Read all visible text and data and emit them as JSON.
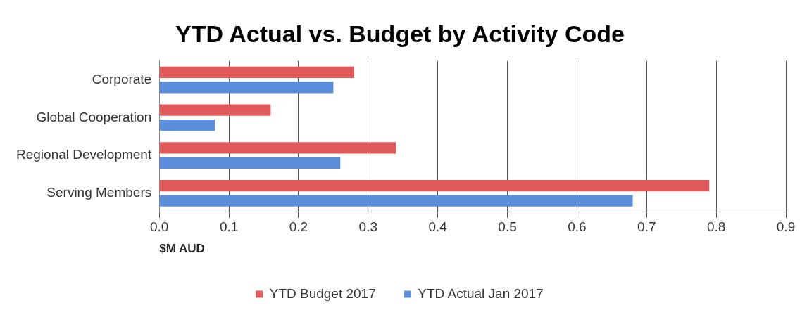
{
  "chart_data": {
    "type": "bar",
    "orientation": "horizontal",
    "title": "YTD Actual vs. Budget by Activity Code",
    "xlabel": "$M AUD",
    "categories": [
      "Corporate",
      "Global Cooperation",
      "Regional Development",
      "Serving Members"
    ],
    "series": [
      {
        "name": "YTD Budget 2017",
        "color": "#e05a5a",
        "values": [
          0.28,
          0.16,
          0.34,
          0.79
        ]
      },
      {
        "name": "YTD Actual Jan 2017",
        "color": "#5b8fdc",
        "values": [
          0.25,
          0.08,
          0.26,
          0.68
        ]
      }
    ],
    "xlim": [
      0,
      0.9
    ],
    "xticks": [
      "0.0",
      0.1,
      0.2,
      0.3,
      0.4,
      0.5,
      0.6,
      0.7,
      0.8,
      0.9
    ],
    "grid": "x",
    "legend": "bottom"
  }
}
